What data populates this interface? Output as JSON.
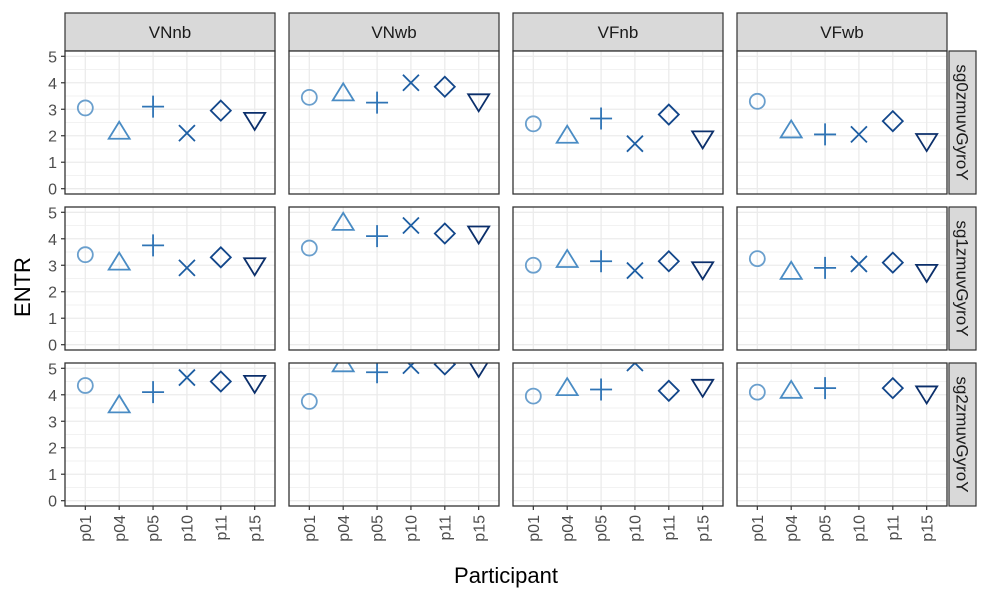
{
  "chart_data": {
    "type": "scatter",
    "title": "",
    "xlabel": "Participant",
    "ylabel": "ENTR",
    "ylim": [
      -0.2,
      5.2
    ],
    "yticks": [
      "0",
      "1",
      "2",
      "3",
      "4",
      "5"
    ],
    "categories": [
      "p01",
      "p04",
      "p05",
      "p10",
      "p11",
      "p15"
    ],
    "columns": [
      "VNnb",
      "VNwb",
      "VFnb",
      "VFwb"
    ],
    "rows": [
      "sg0zmuvGyroY",
      "sg1zmuvGyroY",
      "sg2zmuvGyroY"
    ],
    "grid": true,
    "legend": "none",
    "series_styles": {
      "p01": {
        "shape": "circle",
        "color": "#6a9fcd"
      },
      "p04": {
        "shape": "triangle-up",
        "color": "#4a8cc4"
      },
      "p05": {
        "shape": "plus",
        "color": "#2f74b5"
      },
      "p10": {
        "shape": "cross",
        "color": "#1d5ea3"
      },
      "p11": {
        "shape": "diamond",
        "color": "#12468a"
      },
      "p15": {
        "shape": "triangle-down",
        "color": "#0b2f6b"
      }
    },
    "values": {
      "sg0zmuvGyroY": {
        "VNnb": [
          3.05,
          2.15,
          3.1,
          2.1,
          2.95,
          2.6
        ],
        "VNwb": [
          3.45,
          3.6,
          3.25,
          4.0,
          3.85,
          3.3
        ],
        "VFnb": [
          2.45,
          2.0,
          2.65,
          1.7,
          2.8,
          1.9
        ],
        "VFwb": [
          3.3,
          2.2,
          2.05,
          2.05,
          2.55,
          1.8
        ]
      },
      "sg1zmuvGyroY": {
        "VNnb": [
          3.4,
          3.1,
          3.75,
          2.9,
          3.3,
          3.0
        ],
        "VNwb": [
          3.65,
          4.6,
          4.1,
          4.5,
          4.2,
          4.2
        ],
        "VFnb": [
          3.0,
          3.2,
          3.15,
          2.8,
          3.15,
          2.85
        ],
        "VFwb": [
          3.25,
          2.75,
          2.9,
          3.05,
          3.1,
          2.75
        ]
      },
      "sg2zmuvGyroY": {
        "VNnb": [
          4.35,
          3.6,
          4.1,
          4.65,
          4.5,
          4.45
        ],
        "VNwb": [
          3.75,
          5.15,
          4.85,
          5.1,
          5.15,
          5.05
        ],
        "VFnb": [
          3.95,
          4.25,
          4.2,
          5.2,
          4.15,
          4.3
        ],
        "VFwb": [
          4.1,
          4.15,
          4.25,
          null,
          4.25,
          4.05
        ]
      }
    }
  }
}
